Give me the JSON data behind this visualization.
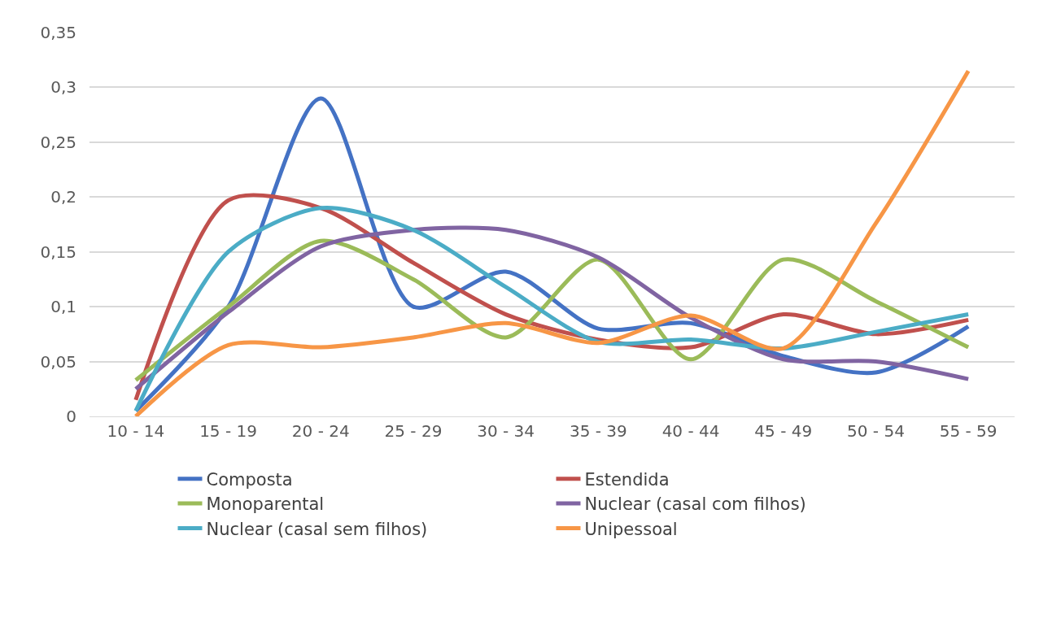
{
  "chart_data": {
    "type": "line",
    "categories": [
      "10 - 14",
      "15 - 19",
      "20 - 24",
      "25 - 29",
      "30 - 34",
      "35 - 39",
      "40 - 44",
      "45 - 49",
      "50 - 54",
      "55 - 59"
    ],
    "series": [
      {
        "name": "Composta",
        "color": "#4472c4",
        "values": [
          0.005,
          0.1,
          0.29,
          0.1,
          0.132,
          0.08,
          0.085,
          0.055,
          0.04,
          0.082
        ]
      },
      {
        "name": "Estendida",
        "color": "#c0504d",
        "values": [
          0.015,
          0.197,
          0.19,
          0.14,
          0.093,
          0.07,
          0.063,
          0.093,
          0.075,
          0.088
        ]
      },
      {
        "name": "Monoparental",
        "color": "#9bbb59",
        "values": [
          0.033,
          0.1,
          0.16,
          0.125,
          0.072,
          0.143,
          0.052,
          0.143,
          0.105,
          0.063
        ]
      },
      {
        "name": "Nuclear (casal com filhos)",
        "color": "#8064a2",
        "values": [
          0.025,
          0.095,
          0.155,
          0.17,
          0.17,
          0.145,
          0.09,
          0.052,
          0.05,
          0.034
        ]
      },
      {
        "name": "Nuclear (casal sem filhos)",
        "color": "#4bacc6",
        "values": [
          0.005,
          0.15,
          0.19,
          0.17,
          0.118,
          0.068,
          0.07,
          0.062,
          0.077,
          0.093
        ]
      },
      {
        "name": "Unipessoal",
        "color": "#f79646",
        "values": [
          0.0,
          0.065,
          0.063,
          0.072,
          0.085,
          0.067,
          0.092,
          0.062,
          0.176,
          0.315
        ]
      }
    ],
    "ylim": [
      0,
      0.35
    ],
    "yticks": [
      {
        "value": 0,
        "label": "0"
      },
      {
        "value": 0.05,
        "label": "0,05"
      },
      {
        "value": 0.1,
        "label": "0,1"
      },
      {
        "value": 0.15,
        "label": "0,15"
      },
      {
        "value": 0.2,
        "label": "0,2"
      },
      {
        "value": 0.25,
        "label": "0,25"
      },
      {
        "value": 0.3,
        "label": "0,3"
      },
      {
        "value": 0.35,
        "label": "0,35"
      }
    ],
    "grid": "y",
    "legend": "bottom",
    "marker": "none",
    "line_style": "solid"
  }
}
